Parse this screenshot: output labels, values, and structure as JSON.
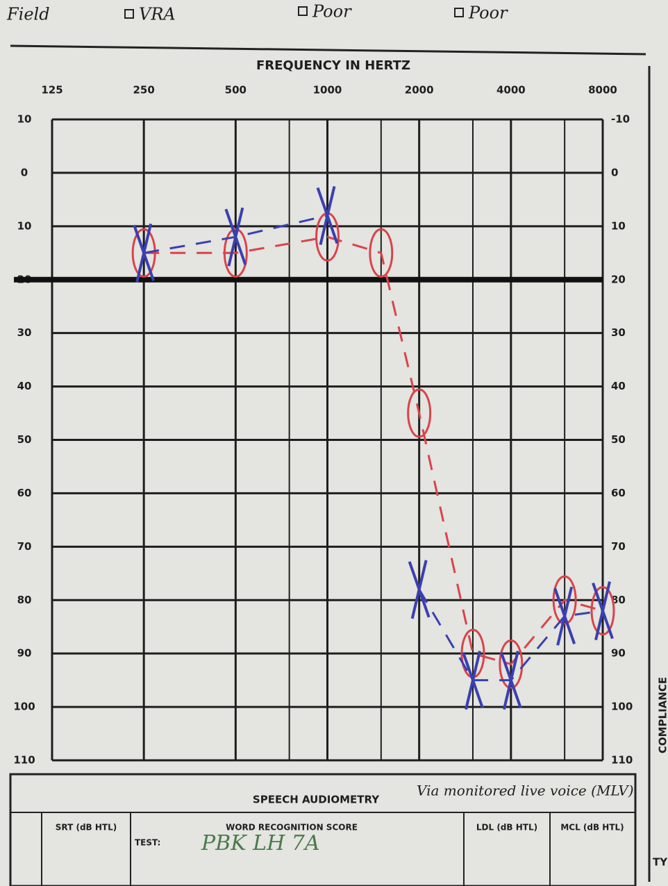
{
  "header": {
    "items": [
      "Field",
      "VRA",
      "Poor",
      "Poor"
    ]
  },
  "chart_data": {
    "type": "line",
    "title": "FREQUENCY IN HERTZ",
    "x": [
      250,
      500,
      1000,
      1500,
      2000,
      3000,
      4000,
      6000,
      8000
    ],
    "xscale": "log",
    "xlim": [
      125,
      8000
    ],
    "xticks": [
      125,
      250,
      500,
      1000,
      2000,
      4000,
      8000
    ],
    "xminor": [
      750,
      1500,
      3000,
      6000
    ],
    "ylim": [
      -10,
      110
    ],
    "y_inverted": true,
    "yticks": [
      {
        "value": -10,
        "label": "10"
      },
      0,
      10,
      20,
      30,
      40,
      50,
      60,
      70,
      80,
      90,
      100,
      110
    ],
    "y2lim": [
      -10,
      110
    ],
    "y2ticks": [
      -10,
      0,
      10,
      20,
      30,
      40,
      50,
      60,
      70,
      80,
      90,
      100,
      110
    ],
    "grid": true,
    "reference_line": 20,
    "series": [
      {
        "color": "#d9434a",
        "marker": "o",
        "values": [
          15,
          15,
          12,
          15,
          45,
          90,
          92,
          80,
          82
        ]
      },
      {
        "color": "#3a3fb0",
        "marker": "x",
        "values": [
          15,
          12,
          8,
          null,
          78,
          95,
          95,
          83,
          82
        ]
      }
    ]
  },
  "speech": {
    "title": "SPEECH AUDIOMETRY",
    "note": "Via monitored live voice (MLV)",
    "columns": [
      "SRT (dB HTL)",
      "WORD RECOGNITION SCORE",
      "LDL (dB HTL)",
      "MCL (dB HTL)"
    ],
    "test_label": "TEST:",
    "test_entry": "PBK LH 7A"
  },
  "side": {
    "compliance": "COMPLIANCE",
    "type_cut": "TY"
  }
}
